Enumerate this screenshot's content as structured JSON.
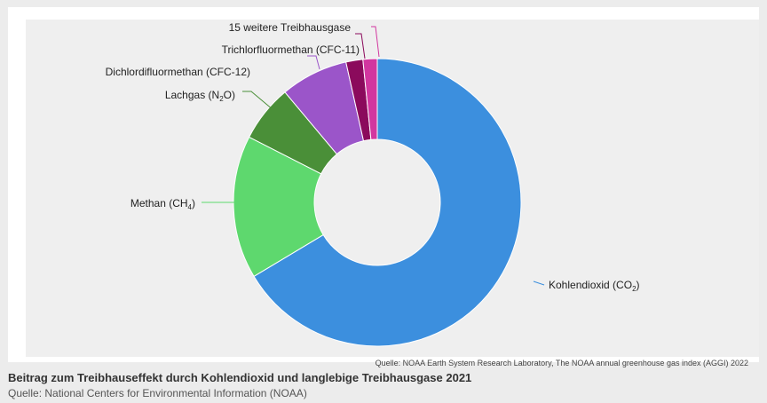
{
  "caption": {
    "title": "Beitrag zum Treibhauseffekt durch Kohlendioxid und langlebige Treibhausgase 2021",
    "source": "Quelle: National Centers for Environmental Information (NOAA)"
  },
  "chart_data": {
    "type": "pie",
    "variant": "donut",
    "source_note": "Quelle: NOAA Earth System Research Laboratory, The NOAA annual greenhouse gas index (AGGI) 2022",
    "slices": [
      {
        "label": "Kohlendioxid (CO",
        "sub": "2",
        "suffix": ")",
        "value": 66.4,
        "color": "#3c8fde"
      },
      {
        "label": "Methan (CH",
        "sub": "4",
        "suffix": ")",
        "value": 16.1,
        "color": "#5ed86e"
      },
      {
        "label": "Lachgas (N",
        "sub": "2",
        "suffix": "O)",
        "value": 6.4,
        "color": "#4a8f38"
      },
      {
        "label": "Dichlordifluormethan (CFC-12)",
        "sub": "",
        "suffix": "",
        "value": 7.6,
        "color": "#9b55c9"
      },
      {
        "label": "Trichlorfluormethan (CFC-11)",
        "sub": "",
        "suffix": "",
        "value": 1.9,
        "color": "#8b0a5c"
      },
      {
        "label": "15 weitere Treibhausgase",
        "sub": "",
        "suffix": "",
        "value": 1.6,
        "color": "#d2369f"
      }
    ]
  }
}
